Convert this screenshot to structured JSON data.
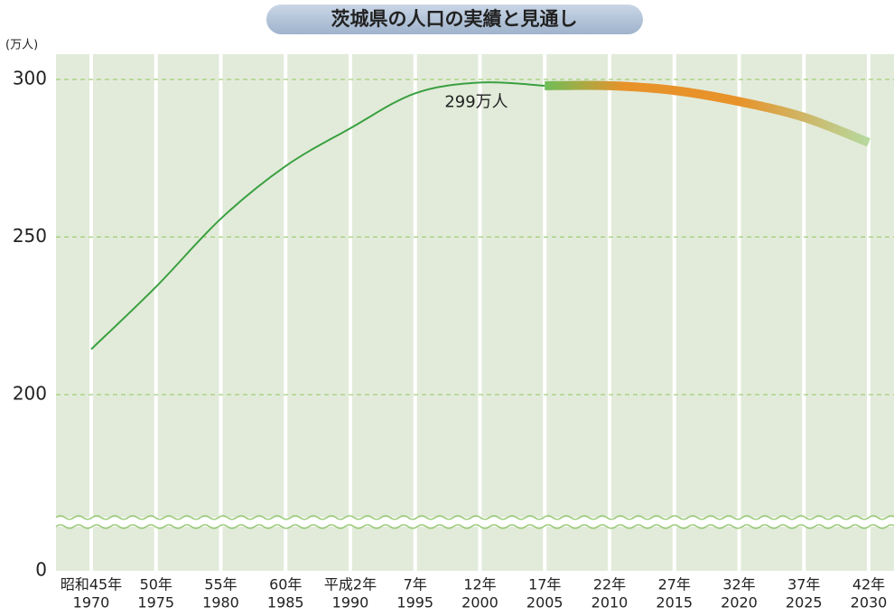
{
  "chart_data": {
    "type": "line",
    "title": "茨城県の人口の実績と見通し",
    "y_unit": "(万人)",
    "categories": [
      "1970",
      "1975",
      "1980",
      "1985",
      "1990",
      "1995",
      "2000",
      "2005",
      "2010",
      "2015",
      "2020",
      "2025",
      "2030"
    ],
    "era_labels": [
      "昭和45年",
      "50年",
      "55年",
      "60年",
      "平成2年",
      "7年",
      "12年",
      "17年",
      "22年",
      "27年",
      "32年",
      "37年",
      "42年"
    ],
    "series": [
      {
        "color": "#3aa040",
        "values": [
          214.4,
          234.2,
          255.8,
          272.5,
          284.5,
          295.6,
          299,
          298,
          null,
          null,
          null,
          null,
          null
        ],
        "value_labels": [
          null,
          null,
          null,
          null,
          null,
          null,
          "299万人",
          null,
          null,
          null,
          null,
          null,
          null
        ]
      },
      {
        "color": "#e8922a",
        "values": [
          null,
          null,
          null,
          null,
          null,
          null,
          null,
          298,
          298,
          296.5,
          293,
          288,
          280
        ]
      }
    ],
    "ylim": [
      0,
      308
    ],
    "axis_break": [
      0,
      159
    ],
    "yticks": [
      0,
      200,
      250,
      300
    ],
    "grid": true
  }
}
